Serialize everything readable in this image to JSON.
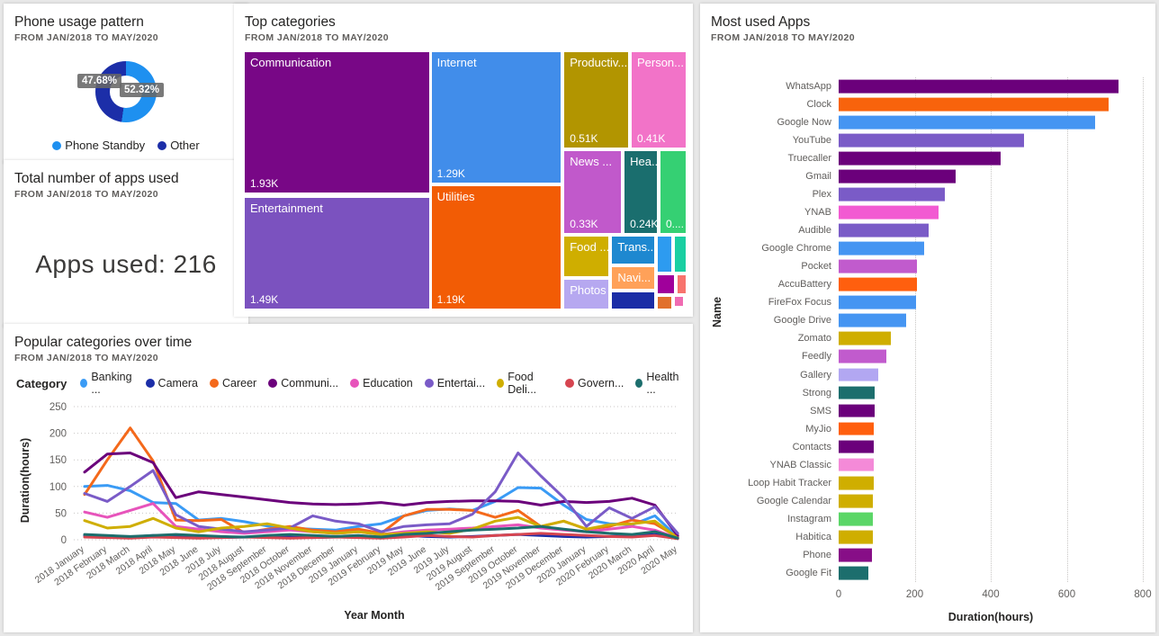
{
  "cards": {
    "phone_usage": {
      "title": "Phone usage pattern",
      "subtitle": "FROM JAN/2018 TO MAY/2020"
    },
    "total_apps": {
      "title": "Total number of apps used",
      "subtitle": "FROM JAN/2018 TO MAY/2020",
      "value_text": "Apps used: 216"
    },
    "top_categories": {
      "title": "Top categories",
      "subtitle": "FROM JAN/2018 TO MAY/2020"
    },
    "popular_over_time": {
      "title": "Popular categories over time",
      "subtitle": "FROM JAN/2018 TO MAY/2020"
    },
    "most_used": {
      "title": "Most used Apps",
      "subtitle": "FROM JAN/2018 TO MAY/2020"
    }
  },
  "chart_data": [
    {
      "type": "pie",
      "variant": "donut",
      "title": "Phone usage pattern",
      "labels": [
        "Phone Standby",
        "Other"
      ],
      "values": [
        52.32,
        47.68
      ],
      "value_labels": [
        "52.32%",
        "47.68%"
      ],
      "colors": [
        "#1E90F0",
        "#1C2EA8"
      ],
      "legend_position": "bottom"
    },
    {
      "type": "treemap",
      "title": "Top categories",
      "tiles": [
        {
          "label": "Communication",
          "value": "1.93K",
          "color": "#780786",
          "x": 0.4,
          "y": 0.7,
          "w": 41.6,
          "h": 54.0
        },
        {
          "label": "Entertainment",
          "value": "1.49K",
          "color": "#7B52BF",
          "x": 0.4,
          "y": 56.8,
          "w": 41.6,
          "h": 42.9
        },
        {
          "label": "Internet",
          "value": "1.29K",
          "color": "#418DEA",
          "x": 42.6,
          "y": 0.7,
          "w": 29.2,
          "h": 50.5
        },
        {
          "label": "Utilities",
          "value": "1.19K",
          "color": "#F25C05",
          "x": 42.6,
          "y": 52.6,
          "w": 29.2,
          "h": 47.0
        },
        {
          "label": "Productiv...",
          "value": "0.51K",
          "color": "#B29500",
          "x": 72.6,
          "y": 0.7,
          "w": 14.4,
          "h": 36.9
        },
        {
          "label": "Person...",
          "value": "0.41K",
          "color": "#F273C8",
          "x": 87.8,
          "y": 0.7,
          "w": 12.2,
          "h": 36.9
        },
        {
          "label": "News ...",
          "value": "0.33K",
          "color": "#C159CB",
          "x": 72.6,
          "y": 39.0,
          "w": 12.8,
          "h": 31.4
        },
        {
          "label": "Hea...",
          "value": "0.24K",
          "color": "#1A6E6E",
          "x": 86.2,
          "y": 39.0,
          "w": 7.3,
          "h": 31.4
        },
        {
          "label": "",
          "value": "0....",
          "color": "#35D073",
          "x": 94.3,
          "y": 39.0,
          "w": 5.7,
          "h": 31.4
        },
        {
          "label": "Food ...",
          "value": "",
          "color": "#CFAE00",
          "x": 72.6,
          "y": 71.8,
          "w": 9.9,
          "h": 15.3
        },
        {
          "label": "Photos",
          "value": "",
          "color": "#B6A8F0",
          "x": 72.6,
          "y": 88.5,
          "w": 9.9,
          "h": 11.1
        },
        {
          "label": "Trans...",
          "value": "",
          "color": "#1E88D0",
          "x": 83.4,
          "y": 71.8,
          "w": 9.5,
          "h": 10.5
        },
        {
          "label": "Navi...",
          "value": "",
          "color": "#FFA159",
          "x": 83.4,
          "y": 83.6,
          "w": 9.5,
          "h": 8.4
        },
        {
          "label": "",
          "value": "",
          "color": "#1B2DA6",
          "x": 83.4,
          "y": 93.4,
          "w": 9.5,
          "h": 6.3
        },
        {
          "label": "",
          "value": "",
          "color": "#2D9BF0",
          "x": 93.7,
          "y": 71.8,
          "w": 3.0,
          "h": 13.6
        },
        {
          "label": "",
          "value": "",
          "color": "#19CFA2",
          "x": 97.6,
          "y": 71.8,
          "w": 2.4,
          "h": 13.6
        },
        {
          "label": "",
          "value": "",
          "color": "#A0009B",
          "x": 93.7,
          "y": 86.8,
          "w": 3.7,
          "h": 7.0
        },
        {
          "label": "",
          "value": "",
          "color": "#F8736D",
          "x": 98.2,
          "y": 86.8,
          "w": 1.8,
          "h": 7.0
        },
        {
          "label": "",
          "value": "",
          "color": "#E1702D",
          "x": 93.7,
          "y": 95.1,
          "w": 3.0,
          "h": 4.5
        },
        {
          "label": "",
          "value": "",
          "color": "#F06BB2",
          "x": 97.6,
          "y": 95.1,
          "w": 1.8,
          "h": 3.5
        }
      ]
    },
    {
      "type": "line",
      "title": "Popular categories over time",
      "legend_title": "Category",
      "xlabel": "Year Month",
      "ylabel": "Duration(hours)",
      "ylim": [
        0,
        250
      ],
      "yticks": [
        0,
        50,
        100,
        150,
        200,
        250
      ],
      "categories": [
        "2018 January",
        "2018 February",
        "2018 March",
        "2018 April",
        "2018 May",
        "2018 June",
        "2018 July",
        "2018 August",
        "2018 September",
        "2018 October",
        "2018 November",
        "2018 December",
        "2019 January",
        "2019 February",
        "2019 May",
        "2019 June",
        "2019 July",
        "2019 August",
        "2019 September",
        "2019 October",
        "2019 November",
        "2019 December",
        "2020 January",
        "2020 February",
        "2020 March",
        "2020 April",
        "2020 May"
      ],
      "series": [
        {
          "name": "Banking ...",
          "color": "#3A9BF5",
          "values": [
            100,
            102,
            92,
            70,
            68,
            37,
            40,
            34,
            26,
            22,
            20,
            18,
            25,
            30,
            45,
            55,
            58,
            55,
            72,
            98,
            97,
            65,
            38,
            30,
            28,
            45,
            5
          ]
        },
        {
          "name": "Camera",
          "color": "#1C2EA8",
          "values": [
            8,
            6,
            5,
            8,
            6,
            5,
            4,
            5,
            6,
            5,
            4,
            5,
            6,
            5,
            8,
            6,
            5,
            6,
            8,
            10,
            8,
            6,
            5,
            6,
            8,
            10,
            2
          ]
        },
        {
          "name": "Career",
          "color": "#F4691B",
          "values": [
            85,
            150,
            210,
            148,
            37,
            36,
            38,
            13,
            20,
            25,
            18,
            15,
            20,
            12,
            45,
            57,
            57,
            55,
            42,
            55,
            25,
            35,
            20,
            25,
            37,
            30,
            5
          ]
        },
        {
          "name": "Communi...",
          "color": "#6B007B",
          "values": [
            127,
            161,
            163,
            145,
            79,
            90,
            85,
            80,
            75,
            70,
            67,
            66,
            67,
            70,
            65,
            70,
            72,
            73,
            73,
            72,
            65,
            72,
            70,
            72,
            78,
            65,
            8
          ]
        },
        {
          "name": "Education",
          "color": "#E754BB",
          "values": [
            52,
            42,
            55,
            68,
            25,
            20,
            15,
            12,
            15,
            18,
            15,
            12,
            15,
            10,
            15,
            18,
            20,
            22,
            25,
            28,
            22,
            18,
            15,
            20,
            25,
            18,
            3
          ]
        },
        {
          "name": "Entertai...",
          "color": "#7A5BC7",
          "values": [
            87,
            72,
            100,
            130,
            47,
            25,
            20,
            15,
            18,
            22,
            45,
            35,
            30,
            15,
            25,
            28,
            30,
            48,
            90,
            163,
            120,
            79,
            25,
            60,
            40,
            62,
            12
          ]
        },
        {
          "name": "Food Deli...",
          "color": "#CFAE00",
          "values": [
            36,
            22,
            25,
            40,
            22,
            15,
            22,
            25,
            30,
            22,
            15,
            12,
            15,
            10,
            12,
            15,
            12,
            20,
            35,
            42,
            25,
            35,
            20,
            28,
            30,
            35,
            3
          ]
        },
        {
          "name": "Govern...",
          "color": "#D64550",
          "values": [
            5,
            4,
            3,
            5,
            4,
            3,
            4,
            5,
            4,
            3,
            4,
            5,
            4,
            3,
            5,
            8,
            6,
            5,
            8,
            10,
            12,
            10,
            8,
            6,
            5,
            8,
            2
          ]
        },
        {
          "name": "Health ...",
          "color": "#1C6E6D",
          "values": [
            10,
            8,
            6,
            8,
            10,
            8,
            6,
            5,
            8,
            10,
            8,
            6,
            8,
            5,
            10,
            12,
            15,
            18,
            20,
            22,
            25,
            20,
            15,
            12,
            10,
            15,
            3
          ]
        }
      ]
    },
    {
      "type": "bar",
      "orientation": "horizontal",
      "title": "Most used Apps",
      "xlabel": "Duration(hours)",
      "ylabel": "Name",
      "xlim": [
        0,
        800
      ],
      "xticks": [
        0,
        200,
        400,
        600,
        800
      ],
      "categories": [
        "WhatsApp",
        "Clock",
        "Google Now",
        "YouTube",
        "Truecaller",
        "Gmail",
        "Plex",
        "YNAB",
        "Audible",
        "Google Chrome",
        "Pocket",
        "AccuBattery",
        "FireFox Focus",
        "Google Drive",
        "Zomato",
        "Feedly",
        "Gallery",
        "Strong",
        "SMS",
        "MyJio",
        "Contacts",
        "YNAB Classic",
        "Loop Habit Tracker",
        "Google Calendar",
        "Instagram",
        "Habitica",
        "Phone",
        "Google Fit"
      ],
      "values": [
        737,
        709,
        674,
        487,
        427,
        307,
        279,
        263,
        237,
        225,
        205,
        205,
        203,
        178,
        138,
        125,
        103,
        95,
        94,
        93,
        92,
        92,
        92,
        91,
        90,
        89,
        88,
        78
      ],
      "colors": [
        "#6B007B",
        "#F8630C",
        "#4595F2",
        "#7A5BC7",
        "#6B007B",
        "#6B007B",
        "#7A5BC7",
        "#F25AD2",
        "#7A5BC7",
        "#4595F2",
        "#C15BCD",
        "#FF5F0E",
        "#4595F2",
        "#4595F2",
        "#CFAE00",
        "#C15BCD",
        "#B2A7F2",
        "#1C6E6D",
        "#6B007B",
        "#FF5F0E",
        "#6B007B",
        "#F48AD8",
        "#CFAE00",
        "#CFAE00",
        "#5BD667",
        "#CFAE00",
        "#870E87",
        "#1C6E6D"
      ]
    }
  ]
}
